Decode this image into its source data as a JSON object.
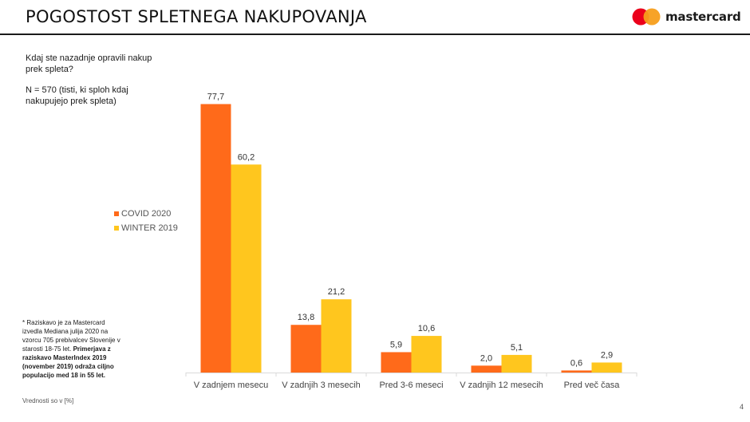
{
  "header": {
    "title": "POGOSTOST SPLETNEGA NAKUPOVANJA",
    "logo_text": "mastercard"
  },
  "question": {
    "text": "Kdaj ste nazadnje opravili nakup prek spleta?",
    "sample": "N = 570 (tisti, ki sploh kdaj nakupujejo prek spleta)"
  },
  "footnote": {
    "text": "* Raziskavo je za Mastercard izvedla Mediana julija 2020 na vzorcu 705 prebivalcev Slovenije v starosti 18-75 let. ",
    "bold": "Primerjava z raziskavo MasterIndex 2019 (november 2019) odraža ciljno populacijo med 18 in 55 let."
  },
  "units_note": "Vrednosti so v [%]",
  "page_number": "4",
  "colors": {
    "covid": "#ff6a1a",
    "winter": "#ffc61e",
    "logo_red": "#eb001b",
    "logo_yellow": "#f79e1b"
  },
  "chart_data": {
    "type": "bar",
    "title": "POGOSTOST SPLETNEGA NAKUPOVANJA",
    "xlabel": "",
    "ylabel": "",
    "ylim": [
      0,
      80
    ],
    "grid": false,
    "legend_position": "left",
    "categories": [
      "V zadnjem mesecu",
      "V zadnjih 3 mesecih",
      "Pred 3-6 meseci",
      "V zadnjih 12 mesecih",
      "Pred več časa"
    ],
    "series": [
      {
        "name": "COVID 2020",
        "values": [
          77.7,
          13.8,
          5.9,
          2.0,
          0.6
        ],
        "labels": [
          "77,7",
          "13,8",
          "5,9",
          "2,0",
          "0,6"
        ]
      },
      {
        "name": "WINTER 2019",
        "values": [
          60.2,
          21.2,
          10.6,
          5.1,
          2.9
        ],
        "labels": [
          "60,2",
          "21,2",
          "10,6",
          "5,1",
          "2,9"
        ]
      }
    ]
  }
}
